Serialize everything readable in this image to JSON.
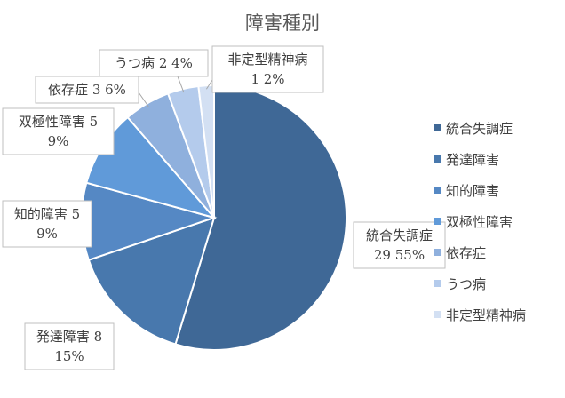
{
  "chart_data": {
    "type": "pie",
    "title": "障害種別",
    "categories": [
      "統合失調症",
      "発達障害",
      "知的障害",
      "双極性障害",
      "依存症",
      "うつ病",
      "非定型精神病"
    ],
    "values": [
      29,
      8,
      5,
      5,
      3,
      2,
      1
    ],
    "percent_labels": [
      "55%",
      "15%",
      "9%",
      "9%",
      "6%",
      "4%",
      "2%"
    ],
    "colors": [
      "#3f6896",
      "#4878ad",
      "#5588c4",
      "#609ad9",
      "#8fb0dd",
      "#b4cbec",
      "#d3e0f3"
    ],
    "legend_position": "right",
    "data_labels": [
      {
        "lines": [
          "統合失調症",
          "29 55%"
        ]
      },
      {
        "lines": [
          "発達障害 8",
          "15%"
        ]
      },
      {
        "lines": [
          "知的障害 5",
          "9%"
        ]
      },
      {
        "lines": [
          "双極性障害 5",
          "9%"
        ]
      },
      {
        "lines": [
          "依存症 3 6%"
        ]
      },
      {
        "lines": [
          "うつ病 2 4%"
        ]
      },
      {
        "lines": [
          "非定型精神病",
          "1 2%"
        ]
      }
    ]
  }
}
